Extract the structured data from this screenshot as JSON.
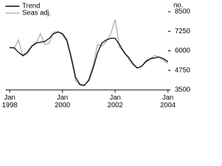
{
  "chart_data": {
    "type": "line",
    "y_axis_label": "no.",
    "x": [
      1998,
      1998.1667,
      1998.3333,
      1998.5,
      1998.6667,
      1998.8333,
      1999,
      1999.1667,
      1999.3333,
      1999.5,
      1999.6667,
      1999.8333,
      2000,
      2000.1667,
      2000.3333,
      2000.5,
      2000.6667,
      2000.8333,
      2001,
      2001.1667,
      2001.3333,
      2001.5,
      2001.6667,
      2001.8333,
      2002,
      2002.1667,
      2002.3333,
      2002.5,
      2002.6667,
      2002.8333,
      2003,
      2003.1667,
      2003.3333,
      2003.5,
      2003.6667,
      2003.8333,
      2004
    ],
    "series": [
      {
        "name": "Trend",
        "color": "#000000",
        "values": [
          6200,
          6200,
          5900,
          5700,
          5900,
          6300,
          6500,
          6550,
          6600,
          6800,
          7100,
          7200,
          7100,
          6700,
          5600,
          4300,
          3850,
          3800,
          4100,
          4900,
          5900,
          6500,
          6700,
          6800,
          6800,
          6400,
          5900,
          5600,
          5200,
          4900,
          5000,
          5300,
          5500,
          5550,
          5600,
          5500,
          5300
        ]
      },
      {
        "name": "Seas adj.",
        "color": "#b4b4b4",
        "values": [
          6250,
          6150,
          6700,
          5650,
          5800,
          6250,
          6450,
          7100,
          6400,
          6500,
          7200,
          7250,
          7000,
          6600,
          5400,
          4100,
          3800,
          3750,
          4200,
          5100,
          6400,
          6300,
          6600,
          7100,
          8000,
          6200,
          6000,
          5500,
          5100,
          4900,
          5000,
          5400,
          5500,
          5700,
          5600,
          5400,
          5200
        ]
      }
    ],
    "xlim": [
      1998,
      2004
    ],
    "xticks": [
      {
        "value": 1998,
        "label": "Jan\n1998"
      },
      {
        "value": 2000,
        "label": "Jan\n2000"
      },
      {
        "value": 2002,
        "label": "Jan\n2002"
      },
      {
        "value": 2004,
        "label": "Jan\n2004"
      }
    ],
    "ylim": [
      3500,
      8500
    ],
    "yticks": [
      3500,
      4750,
      6000,
      7250,
      8500
    ]
  }
}
